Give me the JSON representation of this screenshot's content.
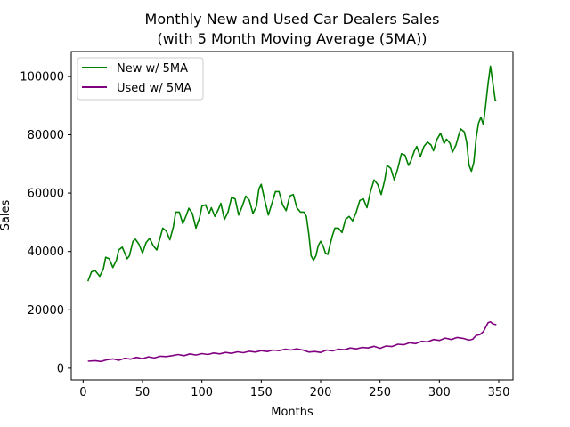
{
  "chart_data": {
    "type": "line",
    "title_line1": "Monthly New and Used Car Dealers Sales",
    "title_line2": "(with 5 Month Moving Average (5MA))",
    "xlabel": "Months",
    "ylabel": "Sales",
    "xlim": [
      -10,
      362
    ],
    "ylim": [
      -4000,
      108500
    ],
    "xticks": [
      0,
      50,
      100,
      150,
      200,
      250,
      300,
      350
    ],
    "xtick_labels": [
      "0",
      "50",
      "100",
      "150",
      "200",
      "250",
      "300",
      "350"
    ],
    "yticks": [
      0,
      20000,
      40000,
      60000,
      80000,
      100000
    ],
    "ytick_labels": [
      "0",
      "20000",
      "40000",
      "60000",
      "80000",
      "100000"
    ],
    "grid": false,
    "legend_position": "top-left",
    "series": [
      {
        "name": "New w/ 5MA",
        "color": "#008000",
        "points": [
          [
            4,
            29800
          ],
          [
            7,
            33000
          ],
          [
            10,
            33500
          ],
          [
            14,
            31500
          ],
          [
            17,
            34000
          ],
          [
            19,
            38000
          ],
          [
            22,
            37500
          ],
          [
            25,
            34500
          ],
          [
            28,
            37000
          ],
          [
            30,
            40500
          ],
          [
            33,
            41500
          ],
          [
            37,
            37500
          ],
          [
            39,
            38500
          ],
          [
            42,
            43500
          ],
          [
            44,
            44200
          ],
          [
            47,
            42500
          ],
          [
            50,
            39500
          ],
          [
            53,
            43000
          ],
          [
            56,
            44500
          ],
          [
            59,
            42000
          ],
          [
            62,
            40500
          ],
          [
            65,
            45000
          ],
          [
            67,
            48000
          ],
          [
            70,
            47000
          ],
          [
            73,
            44000
          ],
          [
            76,
            48500
          ],
          [
            78,
            53500
          ],
          [
            81,
            53500
          ],
          [
            84,
            49500
          ],
          [
            87,
            52500
          ],
          [
            89,
            54800
          ],
          [
            92,
            53000
          ],
          [
            95,
            48000
          ],
          [
            98,
            51500
          ],
          [
            100,
            55500
          ],
          [
            103,
            56000
          ],
          [
            106,
            53000
          ],
          [
            108,
            55000
          ],
          [
            111,
            52000
          ],
          [
            114,
            54500
          ],
          [
            116,
            56500
          ],
          [
            119,
            51000
          ],
          [
            122,
            53500
          ],
          [
            125,
            58500
          ],
          [
            128,
            58000
          ],
          [
            131,
            52500
          ],
          [
            134,
            55500
          ],
          [
            137,
            59000
          ],
          [
            140,
            57500
          ],
          [
            143,
            53000
          ],
          [
            146,
            55500
          ],
          [
            148,
            61500
          ],
          [
            150,
            63000
          ],
          [
            153,
            57500
          ],
          [
            156,
            52500
          ],
          [
            159,
            56500
          ],
          [
            162,
            60500
          ],
          [
            165,
            60500
          ],
          [
            168,
            56000
          ],
          [
            171,
            54000
          ],
          [
            174,
            59000
          ],
          [
            177,
            59500
          ],
          [
            180,
            55000
          ],
          [
            183,
            53500
          ],
          [
            186,
            53500
          ],
          [
            188,
            52000
          ],
          [
            190,
            46000
          ],
          [
            192,
            38500
          ],
          [
            194,
            37000
          ],
          [
            196,
            38500
          ],
          [
            198,
            42000
          ],
          [
            200,
            43500
          ],
          [
            202,
            42000
          ],
          [
            204,
            39500
          ],
          [
            206,
            39000
          ],
          [
            208,
            42500
          ],
          [
            210,
            45500
          ],
          [
            212,
            48000
          ],
          [
            215,
            48000
          ],
          [
            218,
            46500
          ],
          [
            221,
            51000
          ],
          [
            224,
            52000
          ],
          [
            227,
            50500
          ],
          [
            230,
            53500
          ],
          [
            233,
            57500
          ],
          [
            236,
            58000
          ],
          [
            239,
            55000
          ],
          [
            242,
            60500
          ],
          [
            245,
            64500
          ],
          [
            248,
            63000
          ],
          [
            251,
            59500
          ],
          [
            254,
            64500
          ],
          [
            256,
            69500
          ],
          [
            259,
            68500
          ],
          [
            262,
            64500
          ],
          [
            265,
            68500
          ],
          [
            268,
            73500
          ],
          [
            271,
            73000
          ],
          [
            274,
            69500
          ],
          [
            276,
            71000
          ],
          [
            279,
            74500
          ],
          [
            281,
            76000
          ],
          [
            284,
            72500
          ],
          [
            287,
            76000
          ],
          [
            290,
            77500
          ],
          [
            293,
            76500
          ],
          [
            295,
            74500
          ],
          [
            298,
            78500
          ],
          [
            301,
            80500
          ],
          [
            304,
            77000
          ],
          [
            306,
            78500
          ],
          [
            309,
            77000
          ],
          [
            311,
            74000
          ],
          [
            314,
            76500
          ],
          [
            316,
            79500
          ],
          [
            318,
            82000
          ],
          [
            321,
            81000
          ],
          [
            323,
            77500
          ],
          [
            325,
            69500
          ],
          [
            327,
            67500
          ],
          [
            329,
            70500
          ],
          [
            331,
            79000
          ],
          [
            333,
            84000
          ],
          [
            335,
            86000
          ],
          [
            337,
            83500
          ],
          [
            339,
            90000
          ],
          [
            341,
            97500
          ],
          [
            343,
            103500
          ],
          [
            345,
            98000
          ],
          [
            347,
            92000
          ],
          [
            348,
            91500
          ]
        ]
      },
      {
        "name": "Used w/ 5MA",
        "color": "#800080",
        "points": [
          [
            4,
            2400
          ],
          [
            10,
            2600
          ],
          [
            15,
            2300
          ],
          [
            20,
            2900
          ],
          [
            25,
            3200
          ],
          [
            30,
            2700
          ],
          [
            35,
            3400
          ],
          [
            40,
            3100
          ],
          [
            45,
            3700
          ],
          [
            50,
            3300
          ],
          [
            55,
            3900
          ],
          [
            60,
            3500
          ],
          [
            65,
            4100
          ],
          [
            70,
            4000
          ],
          [
            75,
            4300
          ],
          [
            80,
            4700
          ],
          [
            85,
            4300
          ],
          [
            90,
            4900
          ],
          [
            95,
            4500
          ],
          [
            100,
            5000
          ],
          [
            105,
            4700
          ],
          [
            110,
            5200
          ],
          [
            115,
            4900
          ],
          [
            120,
            5400
          ],
          [
            125,
            5100
          ],
          [
            130,
            5600
          ],
          [
            135,
            5300
          ],
          [
            140,
            5800
          ],
          [
            145,
            5500
          ],
          [
            150,
            6000
          ],
          [
            155,
            5700
          ],
          [
            160,
            6200
          ],
          [
            165,
            6000
          ],
          [
            170,
            6500
          ],
          [
            175,
            6200
          ],
          [
            180,
            6600
          ],
          [
            185,
            6200
          ],
          [
            190,
            5500
          ],
          [
            195,
            5700
          ],
          [
            200,
            5400
          ],
          [
            205,
            6200
          ],
          [
            210,
            5900
          ],
          [
            215,
            6500
          ],
          [
            220,
            6300
          ],
          [
            225,
            6900
          ],
          [
            230,
            6600
          ],
          [
            235,
            7100
          ],
          [
            240,
            6900
          ],
          [
            245,
            7500
          ],
          [
            250,
            6800
          ],
          [
            255,
            7600
          ],
          [
            260,
            7400
          ],
          [
            265,
            8200
          ],
          [
            270,
            8000
          ],
          [
            275,
            8700
          ],
          [
            280,
            8400
          ],
          [
            285,
            9200
          ],
          [
            290,
            9000
          ],
          [
            295,
            9800
          ],
          [
            300,
            9500
          ],
          [
            305,
            10300
          ],
          [
            310,
            9800
          ],
          [
            315,
            10500
          ],
          [
            320,
            10200
          ],
          [
            325,
            9600
          ],
          [
            328,
            9900
          ],
          [
            331,
            11200
          ],
          [
            334,
            11500
          ],
          [
            337,
            12500
          ],
          [
            339,
            14000
          ],
          [
            341,
            15600
          ],
          [
            343,
            15900
          ],
          [
            345,
            15200
          ],
          [
            348,
            14900
          ]
        ]
      }
    ]
  }
}
